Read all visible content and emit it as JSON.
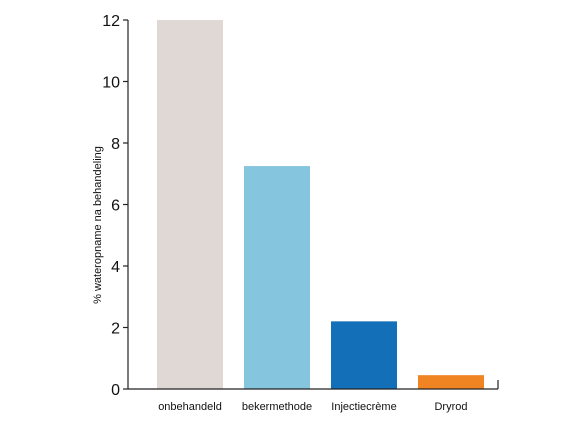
{
  "chart_data": {
    "type": "bar",
    "categories": [
      "onbehandeld",
      "bekermethode",
      "Injectiecrème",
      "Dryrod"
    ],
    "values": [
      12,
      7.25,
      2.2,
      0.45
    ],
    "colors": [
      "#e0d8d5",
      "#86c5de",
      "#136fb8",
      "#f08322"
    ],
    "ylabel": "% wateropname na behandeling",
    "xlabel": "",
    "title": "",
    "ylim": [
      0,
      12
    ],
    "yticks": [
      0,
      2,
      4,
      6,
      8,
      10,
      12
    ],
    "grid": false,
    "legend": "none"
  }
}
